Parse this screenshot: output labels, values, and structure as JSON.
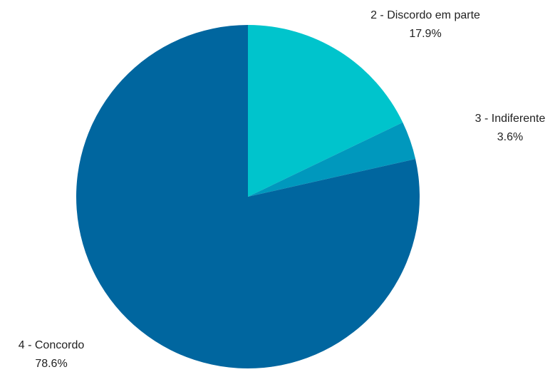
{
  "chart_data": {
    "type": "pie",
    "title": "",
    "categories": [
      "2 - Discordo em parte",
      "3 - Indiferente",
      "4 - Concordo"
    ],
    "values": [
      17.9,
      3.6,
      78.6
    ],
    "value_labels": [
      "17.9%",
      "3.6%",
      "78.6%"
    ],
    "colors": [
      "#00c4cc",
      "#0098bd",
      "#00669f"
    ],
    "start_angle_deg": 0,
    "direction": "clockwise",
    "legend": "none"
  }
}
